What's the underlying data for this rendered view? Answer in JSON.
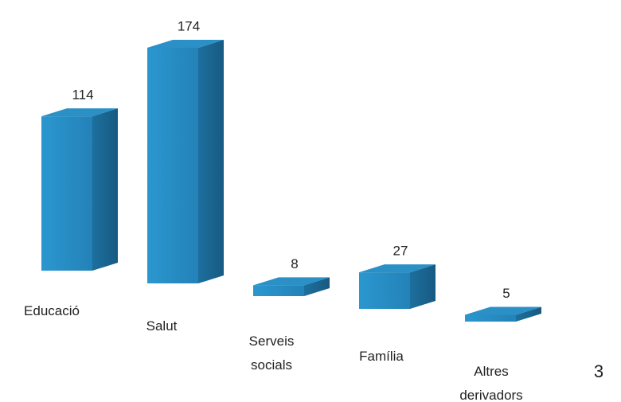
{
  "chart_data": {
    "type": "bar3d",
    "categories": [
      "Educació",
      "Salut",
      "Serveis socials",
      "Família",
      "Altres derivadors"
    ],
    "values": [
      114,
      174,
      8,
      27,
      5
    ],
    "color": "#2a90c6",
    "annotation": "3"
  }
}
